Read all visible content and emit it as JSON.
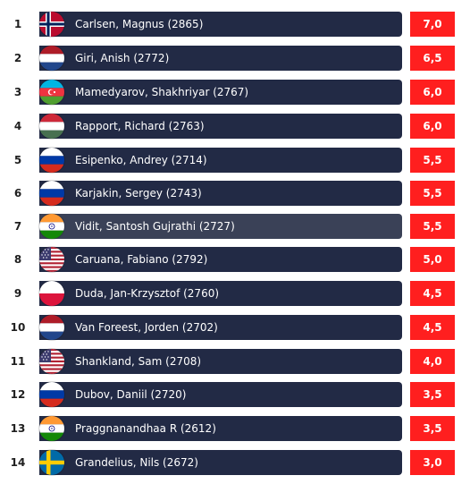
{
  "standings": [
    {
      "rank": "1",
      "player": "Carlsen, Magnus (2865)",
      "score": "7,0",
      "flag": "norway-flag-icon"
    },
    {
      "rank": "2",
      "player": "Giri, Anish (2772)",
      "score": "6,5",
      "flag": "netherlands-flag-icon"
    },
    {
      "rank": "3",
      "player": "Mamedyarov, Shakhriyar (2767)",
      "score": "6,0",
      "flag": "azerbaijan-flag-icon"
    },
    {
      "rank": "4",
      "player": "Rapport, Richard (2763)",
      "score": "6,0",
      "flag": "hungary-flag-icon"
    },
    {
      "rank": "5",
      "player": "Esipenko, Andrey (2714)",
      "score": "5,5",
      "flag": "russia-flag-icon"
    },
    {
      "rank": "6",
      "player": "Karjakin, Sergey (2743)",
      "score": "5,5",
      "flag": "russia-flag-icon"
    },
    {
      "rank": "7",
      "player": "Vidit, Santosh Gujrathi (2727)",
      "score": "5,5",
      "flag": "india-flag-icon"
    },
    {
      "rank": "8",
      "player": "Caruana, Fabiano (2792)",
      "score": "5,0",
      "flag": "usa-flag-icon"
    },
    {
      "rank": "9",
      "player": "Duda, Jan-Krzysztof (2760)",
      "score": "4,5",
      "flag": "poland-flag-icon"
    },
    {
      "rank": "10",
      "player": "Van Foreest, Jorden (2702)",
      "score": "4,5",
      "flag": "netherlands-flag-icon"
    },
    {
      "rank": "11",
      "player": "Shankland, Sam (2708)",
      "score": "4,0",
      "flag": "usa-flag-icon"
    },
    {
      "rank": "12",
      "player": "Dubov, Daniil (2720)",
      "score": "3,5",
      "flag": "russia-flag-icon"
    },
    {
      "rank": "13",
      "player": "Praggnanandhaa R (2612)",
      "score": "3,5",
      "flag": "india-flag-icon"
    },
    {
      "rank": "14",
      "player": "Grandelius, Nils (2672)",
      "score": "3,0",
      "flag": "sweden-flag-icon"
    }
  ],
  "colors": {
    "row_bar": "#222a45",
    "row_bar_highlight": "#3a4157",
    "score_badge": "#ff1f1f",
    "text_light": "#ffffff",
    "rank_text": "#1f1f1f"
  }
}
